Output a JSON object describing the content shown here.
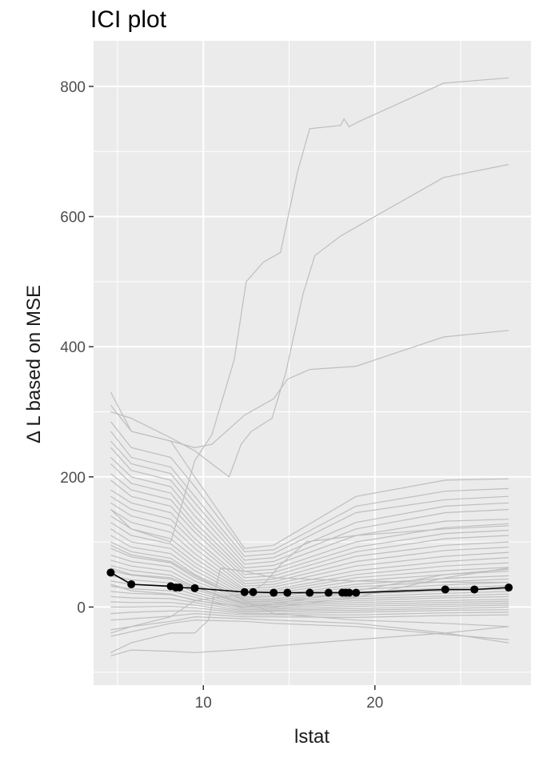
{
  "chart_data": {
    "type": "line",
    "title": "ICI plot",
    "xlabel": "lstat",
    "ylabel": "Δ L based on MSE",
    "xlim": [
      3.6,
      29.1
    ],
    "ylim": [
      -120,
      870
    ],
    "x_ticks": [
      10,
      20
    ],
    "y_ticks": [
      0,
      200,
      400,
      600,
      800
    ],
    "grid": true,
    "legend": "none",
    "colors": {
      "panel_background": "#ebebeb",
      "grid": "#ffffff",
      "ici_lines": "#bebebe",
      "average_line": "#000000"
    },
    "average_series": {
      "x": [
        4.6,
        5.8,
        8.1,
        8.4,
        8.6,
        9.5,
        12.4,
        12.9,
        14.1,
        14.9,
        16.2,
        17.3,
        18.1,
        18.3,
        18.5,
        18.9,
        24.1,
        25.8,
        27.8
      ],
      "y": [
        53,
        35,
        32,
        30,
        30,
        29,
        23,
        23,
        22,
        22,
        22,
        22,
        22,
        22,
        22,
        22,
        27,
        27,
        30
      ]
    },
    "ici_series": [
      {
        "x": [
          4.6,
          5.8,
          8.1,
          9.5,
          10.5,
          11.8,
          12.5,
          13.5,
          14.5,
          15.5,
          16.2,
          18.0,
          18.2,
          18.5,
          19.0,
          24.0,
          27.8
        ],
        "y": [
          150,
          120,
          100,
          225,
          265,
          380,
          500,
          530,
          545,
          670,
          735,
          740,
          750,
          738,
          745,
          805,
          813
        ]
      },
      {
        "x": [
          4.6,
          5.8,
          8.1,
          9.5,
          10.5,
          11.5,
          12.2,
          12.8,
          14.0,
          14.8,
          15.8,
          16.5,
          18.0,
          19.0,
          24.0,
          27.8
        ],
        "y": [
          300,
          290,
          260,
          240,
          220,
          200,
          250,
          270,
          290,
          360,
          480,
          540,
          570,
          585,
          660,
          680
        ]
      },
      {
        "x": [
          4.6,
          5.8,
          8.1,
          9.5,
          10.5,
          12.4,
          14.1,
          14.9,
          16.2,
          18.9,
          24.0,
          27.8
        ],
        "y": [
          330,
          270,
          255,
          245,
          250,
          295,
          320,
          350,
          365,
          370,
          415,
          425
        ]
      },
      {
        "x": [
          4.6,
          5.8,
          8.1,
          9.5,
          12.4,
          14.1,
          18.9,
          24.1,
          27.8
        ],
        "y": [
          310,
          270,
          255,
          200,
          90,
          95,
          170,
          195,
          197
        ]
      },
      {
        "x": [
          4.6,
          5.8,
          8.1,
          9.5,
          12.4,
          14.1,
          18.9,
          24.1,
          27.8
        ],
        "y": [
          285,
          245,
          230,
          185,
          85,
          88,
          155,
          178,
          182
        ]
      },
      {
        "x": [
          4.6,
          5.8,
          8.1,
          9.5,
          12.4,
          14.1,
          18.9,
          24.1,
          27.8
        ],
        "y": [
          270,
          230,
          215,
          170,
          78,
          82,
          145,
          165,
          170
        ]
      },
      {
        "x": [
          4.6,
          5.8,
          8.1,
          9.5,
          12.4,
          14.1,
          18.9,
          24.1,
          27.8
        ],
        "y": [
          255,
          220,
          205,
          160,
          72,
          76,
          130,
          155,
          160
        ]
      },
      {
        "x": [
          4.6,
          5.8,
          8.1,
          9.5,
          12.4,
          14.1,
          18.9,
          24.1,
          27.8
        ],
        "y": [
          245,
          210,
          195,
          150,
          66,
          70,
          120,
          145,
          150
        ]
      },
      {
        "x": [
          4.6,
          5.8,
          8.1,
          9.5,
          12.4,
          14.1,
          18.9,
          24.1,
          27.8
        ],
        "y": [
          230,
          200,
          185,
          140,
          60,
          64,
          110,
          132,
          135
        ]
      },
      {
        "x": [
          4.6,
          5.8,
          8.1,
          9.5,
          12.4,
          14.1,
          18.9,
          24.1,
          27.8
        ],
        "y": [
          220,
          190,
          175,
          130,
          55,
          58,
          100,
          122,
          128
        ]
      },
      {
        "x": [
          4.6,
          5.8,
          8.1,
          9.5,
          12.4,
          14.1,
          18.9,
          24.1,
          27.8
        ],
        "y": [
          205,
          180,
          165,
          122,
          50,
          53,
          92,
          113,
          118
        ]
      },
      {
        "x": [
          4.6,
          5.8,
          8.1,
          9.5,
          12.4,
          14.1,
          18.9,
          24.1,
          27.8
        ],
        "y": [
          195,
          170,
          155,
          115,
          45,
          48,
          85,
          105,
          110
        ]
      },
      {
        "x": [
          4.6,
          5.8,
          8.1,
          9.5,
          12.4,
          14.1,
          18.9,
          24.1,
          27.8
        ],
        "y": [
          180,
          160,
          145,
          105,
          40,
          43,
          78,
          95,
          100
        ]
      },
      {
        "x": [
          4.6,
          5.8,
          8.1,
          9.5,
          12.4,
          14.1,
          18.9,
          24.1,
          27.8
        ],
        "y": [
          170,
          150,
          135,
          98,
          36,
          39,
          70,
          87,
          92
        ]
      },
      {
        "x": [
          4.6,
          5.8,
          8.1,
          9.5,
          12.4,
          14.1,
          18.9,
          24.1,
          27.8
        ],
        "y": [
          160,
          140,
          125,
          90,
          32,
          35,
          63,
          78,
          84
        ]
      },
      {
        "x": [
          4.6,
          5.8,
          8.1,
          9.5,
          12.4,
          14.1,
          18.9,
          24.1,
          27.8
        ],
        "y": [
          150,
          130,
          115,
          82,
          28,
          31,
          56,
          70,
          76
        ]
      },
      {
        "x": [
          4.6,
          5.8,
          8.1,
          9.5,
          12.4,
          14.1,
          18.9,
          24.1,
          27.8
        ],
        "y": [
          140,
          120,
          105,
          75,
          25,
          27,
          50,
          63,
          68
        ]
      },
      {
        "x": [
          4.6,
          5.8,
          8.1,
          9.5,
          12.4,
          14.1,
          18.9,
          24.1,
          27.8
        ],
        "y": [
          130,
          110,
          97,
          68,
          22,
          24,
          45,
          56,
          61
        ]
      },
      {
        "x": [
          4.6,
          5.8,
          8.1,
          9.5,
          12.4,
          14.1,
          18.9,
          24.1,
          27.8
        ],
        "y": [
          120,
          100,
          90,
          62,
          19,
          21,
          40,
          50,
          55
        ]
      },
      {
        "x": [
          4.6,
          5.8,
          8.1,
          9.5,
          12.4,
          14.1,
          18.9,
          24.1,
          27.8
        ],
        "y": [
          110,
          92,
          82,
          56,
          16,
          18,
          35,
          44,
          48
        ]
      },
      {
        "x": [
          4.6,
          5.8,
          8.1,
          9.5,
          12.4,
          14.1,
          18.9,
          24.1,
          27.8
        ],
        "y": [
          100,
          85,
          75,
          50,
          14,
          16,
          31,
          39,
          43
        ]
      },
      {
        "x": [
          4.6,
          5.8,
          8.1,
          9.5,
          12.4,
          14.1,
          18.9,
          24.1,
          27.8
        ],
        "y": [
          90,
          77,
          68,
          45,
          12,
          13,
          27,
          34,
          38
        ]
      },
      {
        "x": [
          4.6,
          5.8,
          8.1,
          9.5,
          12.4,
          14.1,
          18.9,
          24.1,
          27.8
        ],
        "y": [
          80,
          70,
          62,
          40,
          10,
          11,
          23,
          29,
          33
        ]
      },
      {
        "x": [
          4.6,
          5.8,
          8.1,
          9.5,
          12.4,
          14.1,
          18.9,
          24.1,
          27.8
        ],
        "y": [
          72,
          63,
          55,
          35,
          8,
          9,
          20,
          25,
          28
        ]
      },
      {
        "x": [
          4.6,
          5.8,
          8.1,
          9.5,
          12.4,
          14.1,
          18.9,
          24.1,
          27.8
        ],
        "y": [
          64,
          56,
          49,
          31,
          6,
          7,
          16,
          21,
          24
        ]
      },
      {
        "x": [
          4.6,
          5.8,
          8.1,
          9.5,
          12.4,
          14.1,
          18.9,
          24.1,
          27.8
        ],
        "y": [
          56,
          49,
          43,
          27,
          4,
          5,
          13,
          17,
          20
        ]
      },
      {
        "x": [
          4.6,
          5.8,
          8.1,
          9.5,
          12.4,
          14.1,
          18.9,
          24.1,
          27.8
        ],
        "y": [
          48,
          42,
          37,
          23,
          2,
          3,
          10,
          14,
          16
        ]
      },
      {
        "x": [
          4.6,
          5.8,
          8.1,
          9.5,
          12.4,
          14.1,
          18.9,
          24.1,
          27.8
        ],
        "y": [
          40,
          35,
          31,
          19,
          0,
          1,
          7,
          10,
          12
        ]
      },
      {
        "x": [
          4.6,
          5.8,
          8.1,
          9.5,
          12.4,
          14.1,
          18.9,
          24.1,
          27.8
        ],
        "y": [
          32,
          28,
          25,
          15,
          -2,
          -1,
          4,
          7,
          9
        ]
      },
      {
        "x": [
          4.6,
          5.8,
          8.1,
          9.5,
          12.4,
          14.1,
          18.9,
          24.1,
          27.8
        ],
        "y": [
          24,
          21,
          19,
          11,
          -4,
          -3,
          1,
          4,
          6
        ]
      },
      {
        "x": [
          4.6,
          5.8,
          8.1,
          9.5,
          12.4,
          14.1,
          18.9,
          24.1,
          27.8
        ],
        "y": [
          16,
          14,
          13,
          7,
          -6,
          -5,
          -2,
          1,
          3
        ]
      },
      {
        "x": [
          4.6,
          5.8,
          8.1,
          9.5,
          12.4,
          14.1,
          18.9,
          24.1,
          27.8
        ],
        "y": [
          8,
          7,
          7,
          3,
          -8,
          -7,
          -5,
          -2,
          0
        ]
      },
      {
        "x": [
          4.6,
          5.8,
          8.1,
          9.5,
          12.4,
          14.1,
          18.9,
          24.1,
          27.8
        ],
        "y": [
          0,
          0,
          1,
          -1,
          -10,
          -10,
          -8,
          -5,
          -4
        ]
      },
      {
        "x": [
          4.6,
          5.8,
          8.1,
          9.5,
          12.4,
          14.1,
          18.9,
          24.1,
          27.8
        ],
        "y": [
          -10,
          -8,
          -6,
          -6,
          -12,
          -12,
          -12,
          -9,
          -8
        ]
      },
      {
        "x": [
          4.6,
          5.8,
          8.1,
          9.5,
          12.4,
          14.1,
          18.9,
          24.1,
          27.8
        ],
        "y": [
          -20,
          -18,
          -14,
          -10,
          -15,
          -15,
          -16,
          -13,
          -12
        ]
      },
      {
        "x": [
          4.6,
          5.8,
          8.1,
          9.5,
          12.4,
          14.1,
          18.9,
          24.1,
          27.8
        ],
        "y": [
          -35,
          -30,
          -22,
          -15,
          -18,
          -20,
          -25,
          -40,
          -55
        ]
      },
      {
        "x": [
          4.6,
          5.8,
          8.1,
          9.5,
          12.4,
          14.1,
          18.9,
          24.1,
          27.8
        ],
        "y": [
          -45,
          -38,
          -25,
          -20,
          -22,
          -25,
          -30,
          -42,
          -50
        ]
      },
      {
        "x": [
          4.6,
          5.8,
          8.1,
          9.5,
          12.4,
          14.1,
          18.9,
          24.1,
          27.8
        ],
        "y": [
          -75,
          -66,
          -68,
          -70,
          -65,
          -60,
          -50,
          -40,
          -30
        ]
      },
      {
        "x": [
          4.6,
          5.8,
          8.1,
          9.5,
          10.3,
          11.0,
          12.4,
          14.1,
          18.9,
          24.1,
          27.8
        ],
        "y": [
          -70,
          -55,
          -40,
          -40,
          -20,
          60,
          55,
          45,
          40,
          38,
          38
        ]
      },
      {
        "x": [
          4.6,
          5.8,
          8.1,
          9.5,
          12.4,
          13.5,
          14.5,
          16.0,
          18.9,
          24.1,
          27.8
        ],
        "y": [
          -40,
          -30,
          -15,
          10,
          20,
          35,
          65,
          100,
          110,
          120,
          125
        ]
      },
      {
        "x": [
          4.6,
          5.8,
          8.1,
          9.5,
          12.4,
          14.1,
          18.9,
          24.1,
          27.8
        ],
        "y": [
          95,
          80,
          70,
          48,
          10,
          -10,
          -20,
          -25,
          -30
        ]
      },
      {
        "x": [
          4.6,
          5.8,
          8.1,
          9.5,
          12.4,
          14.1,
          18.9,
          24.1,
          27.8
        ],
        "y": [
          60,
          50,
          45,
          30,
          5,
          0,
          15,
          45,
          60
        ]
      },
      {
        "x": [
          4.6,
          5.8,
          8.1,
          9.5,
          12.4,
          14.1,
          18.9,
          24.1,
          27.8
        ],
        "y": [
          35,
          25,
          20,
          10,
          0,
          5,
          25,
          50,
          58
        ]
      }
    ]
  }
}
